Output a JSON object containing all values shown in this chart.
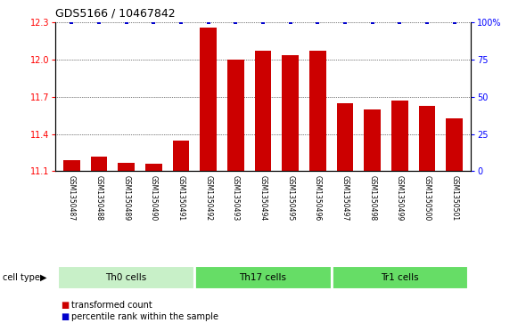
{
  "title": "GDS5166 / 10467842",
  "samples": [
    "GSM1350487",
    "GSM1350488",
    "GSM1350489",
    "GSM1350490",
    "GSM1350491",
    "GSM1350492",
    "GSM1350493",
    "GSM1350494",
    "GSM1350495",
    "GSM1350496",
    "GSM1350497",
    "GSM1350498",
    "GSM1350499",
    "GSM1350500",
    "GSM1350501"
  ],
  "transformed_count": [
    11.19,
    11.22,
    11.17,
    11.16,
    11.35,
    12.26,
    12.0,
    12.07,
    12.04,
    12.07,
    11.65,
    11.6,
    11.67,
    11.63,
    11.53
  ],
  "cell_groups": [
    {
      "label": "Th0 cells",
      "start": 0,
      "end": 5,
      "color": "#c8f0c8"
    },
    {
      "label": "Th17 cells",
      "start": 5,
      "end": 10,
      "color": "#66dd66"
    },
    {
      "label": "Tr1 cells",
      "start": 10,
      "end": 15,
      "color": "#66dd66"
    }
  ],
  "ylim_left": [
    11.1,
    12.3
  ],
  "ylim_right": [
    0,
    100
  ],
  "yticks_left": [
    11.1,
    11.4,
    11.7,
    12.0,
    12.3
  ],
  "yticks_right": [
    0,
    25,
    50,
    75,
    100
  ],
  "bar_color": "#cc0000",
  "dot_color": "#0000cc",
  "label_bg_color": "#c8c8c8",
  "legend_bar_label": "transformed count",
  "legend_dot_label": "percentile rank within the sample",
  "cell_type_label": "cell type"
}
